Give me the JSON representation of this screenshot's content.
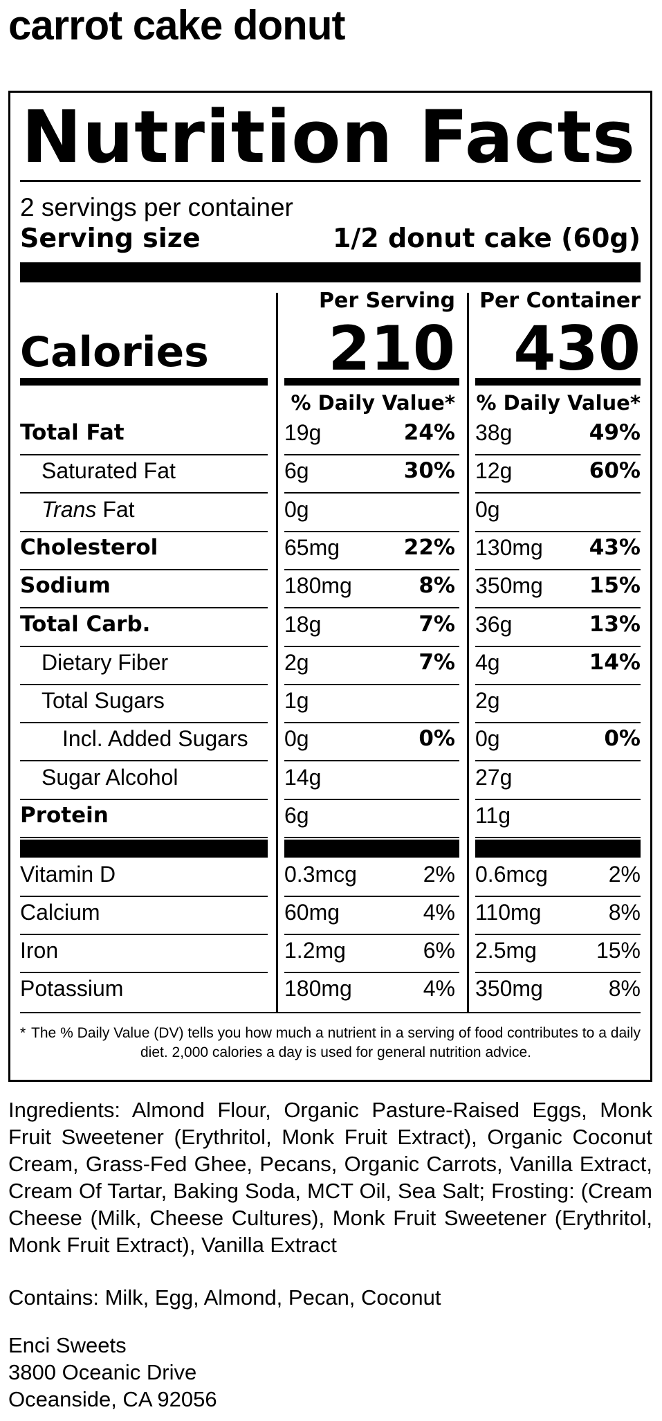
{
  "product_name": "carrot cake donut",
  "label": {
    "title": "Nutrition Facts",
    "servings_per_container": "2 servings per container",
    "serving_size_label": "Serving size",
    "serving_size_value": "1/2 donut cake (60g)",
    "per_serving_header": "Per Serving",
    "per_container_header": "Per Container",
    "calories_label": "Calories",
    "calories_per_serving": "210",
    "calories_per_container": "430",
    "daily_value_header": "% Daily Value*",
    "nutrients": [
      {
        "name": "Total Fat",
        "serving_amount": "19g",
        "serving_dv": "24%",
        "container_amount": "38g",
        "container_dv": "49%"
      },
      {
        "name": "Saturated Fat",
        "serving_amount": "6g",
        "serving_dv": "30%",
        "container_amount": "12g",
        "container_dv": "60%"
      },
      {
        "name_italic": "Trans",
        "name": " Fat",
        "serving_amount": "0g",
        "serving_dv": "",
        "container_amount": "0g",
        "container_dv": ""
      },
      {
        "name": "Cholesterol",
        "serving_amount": "65mg",
        "serving_dv": "22%",
        "container_amount": "130mg",
        "container_dv": "43%"
      },
      {
        "name": "Sodium",
        "serving_amount": "180mg",
        "serving_dv": "8%",
        "container_amount": "350mg",
        "container_dv": "15%"
      },
      {
        "name": "Total Carb.",
        "serving_amount": "18g",
        "serving_dv": "7%",
        "container_amount": "36g",
        "container_dv": "13%"
      },
      {
        "name": "Dietary Fiber",
        "serving_amount": "2g",
        "serving_dv": "7%",
        "container_amount": "4g",
        "container_dv": "14%"
      },
      {
        "name": "Total Sugars",
        "serving_amount": "1g",
        "serving_dv": "",
        "container_amount": "2g",
        "container_dv": ""
      },
      {
        "name": "Incl. Added Sugars",
        "serving_amount": "0g",
        "serving_dv": "0%",
        "container_amount": "0g",
        "container_dv": "0%"
      },
      {
        "name": "Sugar Alcohol",
        "serving_amount": "14g",
        "serving_dv": "",
        "container_amount": "27g",
        "container_dv": ""
      },
      {
        "name": "Protein",
        "serving_amount": "6g",
        "serving_dv": "",
        "container_amount": "11g",
        "container_dv": ""
      }
    ],
    "vitamins": [
      {
        "name": "Vitamin D",
        "serving_amount": "0.3mcg",
        "serving_dv": "2%",
        "container_amount": "0.6mcg",
        "container_dv": "2%"
      },
      {
        "name": "Calcium",
        "serving_amount": "60mg",
        "serving_dv": "4%",
        "container_amount": "110mg",
        "container_dv": "8%"
      },
      {
        "name": "Iron",
        "serving_amount": "1.2mg",
        "serving_dv": "6%",
        "container_amount": "2.5mg",
        "container_dv": "15%"
      },
      {
        "name": "Potassium",
        "serving_amount": "180mg",
        "serving_dv": "4%",
        "container_amount": "350mg",
        "container_dv": "8%"
      }
    ],
    "footnote_star": "*",
    "footnote": "The % Daily Value (DV) tells you how much a nutrient in a serving of food contributes to a daily diet. 2,000 calories a day is used for general nutrition advice."
  },
  "ingredients": "Ingredients: Almond Flour, Organic Pasture-Raised Eggs, Monk Fruit Sweetener (Erythritol, Monk Fruit Extract), Organic Coconut Cream, Grass-Fed Ghee, Pecans, Organic Carrots, Vanilla Extract, Cream Of Tartar, Baking Soda, MCT Oil, Sea Salt; Frosting: (Cream Cheese (Milk, Cheese Cultures), Monk Fruit Sweetener (Erythritol, Monk Fruit Extract), Vanilla Extract",
  "contains": "Contains: Milk, Egg, Almond, Pecan, Coconut",
  "company": {
    "name": "Enci Sweets",
    "street": "3800 Oceanic Drive",
    "city": "Oceanside, CA 92056"
  }
}
